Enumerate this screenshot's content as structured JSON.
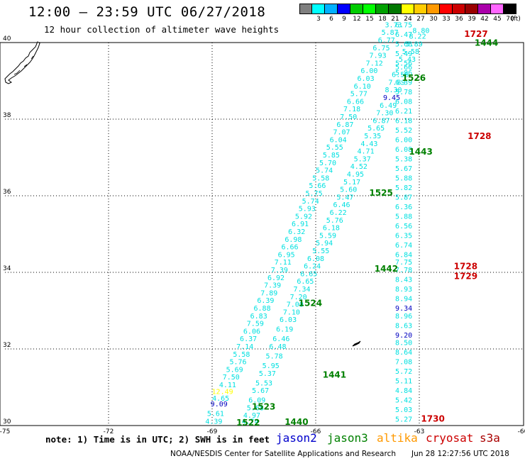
{
  "title": "12:00 – 23:59 UTC 06/27/2018",
  "subtitle": "12 hour collection of altimeter wave heights",
  "colorbar": {
    "unit_label": "(ft)",
    "levels": [
      {
        "label": "",
        "color": "#7f7f7f"
      },
      {
        "label": "3",
        "color": "#00ffff"
      },
      {
        "label": "6",
        "color": "#00b0ff"
      },
      {
        "label": "9",
        "color": "#0000ff"
      },
      {
        "label": "12",
        "color": "#00cc00"
      },
      {
        "label": "15",
        "color": "#00ff00"
      },
      {
        "label": "18",
        "color": "#00a000"
      },
      {
        "label": "21",
        "color": "#007700"
      },
      {
        "label": "24",
        "color": "#ffff00"
      },
      {
        "label": "27",
        "color": "#ffcc00"
      },
      {
        "label": "30",
        "color": "#ff9900"
      },
      {
        "label": "33",
        "color": "#ff0000"
      },
      {
        "label": "36",
        "color": "#cc0000"
      },
      {
        "label": "39",
        "color": "#990000"
      },
      {
        "label": "42",
        "color": "#aa00aa"
      },
      {
        "label": "45",
        "color": "#ff66ff"
      },
      {
        "label": "70",
        "color": "#000000"
      }
    ]
  },
  "axes": {
    "lon_ticks": [
      "-75",
      "-72",
      "-69",
      "-66",
      "-63",
      "-60"
    ],
    "lat_ticks": [
      "40",
      "38",
      "36",
      "34",
      "32",
      "30"
    ],
    "lon_range": [
      -75,
      -60
    ],
    "lat_range": [
      30,
      40
    ]
  },
  "colors": {
    "swh_low": "#00e0e0",
    "swh_mid": "#0000c0",
    "swh_high": "#ffff00",
    "jason2": "#0000cc",
    "jason3": "#008000",
    "altika": "#ff9900",
    "cryosat": "#cc0000",
    "s3a": "#aa0000"
  },
  "swh_tracks": [
    {
      "name": "track-a",
      "points": [
        {
          "lon": -68.95,
          "lat": 30.05,
          "v": "4.39"
        },
        {
          "lon": -68.9,
          "lat": 30.25,
          "v": "5.61"
        },
        {
          "lon": -68.8,
          "lat": 30.5,
          "v": "9.09",
          "c": "mid"
        },
        {
          "lon": -68.75,
          "lat": 30.65,
          "v": "4.65"
        },
        {
          "lon": -68.7,
          "lat": 30.82,
          "v": "12.49",
          "c": "high"
        },
        {
          "lon": -68.55,
          "lat": 31.0,
          "v": "4.11"
        },
        {
          "lon": -68.45,
          "lat": 31.2,
          "v": "7.50"
        },
        {
          "lon": -68.35,
          "lat": 31.4,
          "v": "5.69"
        },
        {
          "lon": -68.25,
          "lat": 31.6,
          "v": "5.76"
        },
        {
          "lon": -68.15,
          "lat": 31.8,
          "v": "5.58"
        },
        {
          "lon": -68.05,
          "lat": 32.0,
          "v": "7.14"
        },
        {
          "lon": -67.95,
          "lat": 32.2,
          "v": "6.37"
        },
        {
          "lon": -67.85,
          "lat": 32.4,
          "v": "6.06"
        },
        {
          "lon": -67.75,
          "lat": 32.6,
          "v": "7.59"
        },
        {
          "lon": -67.65,
          "lat": 32.8,
          "v": "6.83"
        },
        {
          "lon": -67.55,
          "lat": 33.0,
          "v": "6.88"
        },
        {
          "lon": -67.45,
          "lat": 33.2,
          "v": "6.39"
        },
        {
          "lon": -67.35,
          "lat": 33.4,
          "v": "7.89"
        },
        {
          "lon": -67.25,
          "lat": 33.6,
          "v": "7.39"
        },
        {
          "lon": -67.15,
          "lat": 33.8,
          "v": "6.92"
        },
        {
          "lon": -67.05,
          "lat": 34.0,
          "v": "7.39"
        },
        {
          "lon": -66.95,
          "lat": 34.2,
          "v": "7.11"
        },
        {
          "lon": -66.85,
          "lat": 34.4,
          "v": "6.95"
        },
        {
          "lon": -66.75,
          "lat": 34.6,
          "v": "6.66"
        },
        {
          "lon": -66.65,
          "lat": 34.8,
          "v": "6.98"
        },
        {
          "lon": -66.55,
          "lat": 35.0,
          "v": "6.32"
        },
        {
          "lon": -66.45,
          "lat": 35.2,
          "v": "6.91"
        },
        {
          "lon": -66.35,
          "lat": 35.4,
          "v": "5.92"
        },
        {
          "lon": -66.25,
          "lat": 35.6,
          "v": "5.93"
        },
        {
          "lon": -66.15,
          "lat": 35.8,
          "v": "5.74"
        },
        {
          "lon": -66.05,
          "lat": 36.0,
          "v": "5.75"
        },
        {
          "lon": -65.95,
          "lat": 36.2,
          "v": "5.66"
        },
        {
          "lon": -65.85,
          "lat": 36.4,
          "v": "5.58"
        },
        {
          "lon": -65.75,
          "lat": 36.6,
          "v": "5.74"
        },
        {
          "lon": -65.65,
          "lat": 36.8,
          "v": "5.70"
        },
        {
          "lon": -65.55,
          "lat": 37.0,
          "v": "5.85"
        },
        {
          "lon": -65.45,
          "lat": 37.2,
          "v": "5.55"
        },
        {
          "lon": -65.35,
          "lat": 37.4,
          "v": "6.04"
        },
        {
          "lon": -65.25,
          "lat": 37.6,
          "v": "7.07"
        },
        {
          "lon": -65.15,
          "lat": 37.8,
          "v": "6.87"
        },
        {
          "lon": -65.05,
          "lat": 38.0,
          "v": "7.50"
        },
        {
          "lon": -64.95,
          "lat": 38.2,
          "v": "7.18"
        },
        {
          "lon": -64.85,
          "lat": 38.4,
          "v": "6.66"
        },
        {
          "lon": -64.75,
          "lat": 38.6,
          "v": "5.77"
        },
        {
          "lon": -64.65,
          "lat": 38.8,
          "v": "6.10"
        },
        {
          "lon": -64.55,
          "lat": 39.0,
          "v": "6.03"
        },
        {
          "lon": -64.45,
          "lat": 39.2,
          "v": "6.00"
        },
        {
          "lon": -64.3,
          "lat": 39.4,
          "v": "7.12"
        },
        {
          "lon": -64.2,
          "lat": 39.6,
          "v": "7.93"
        },
        {
          "lon": -64.1,
          "lat": 39.8,
          "v": "6.75"
        },
        {
          "lon": -63.95,
          "lat": 40.0,
          "v": "6.77"
        },
        {
          "lon": -63.85,
          "lat": 40.2,
          "v": "5.87"
        },
        {
          "lon": -63.75,
          "lat": 40.4,
          "v": "3.73"
        }
      ]
    },
    {
      "name": "track-b",
      "points": [
        {
          "lon": -67.9,
          "lat": 30.05,
          "v": "4.74"
        },
        {
          "lon": -67.85,
          "lat": 30.2,
          "v": "4.97"
        },
        {
          "lon": -67.75,
          "lat": 30.4,
          "v": "5.68"
        },
        {
          "lon": -67.7,
          "lat": 30.6,
          "v": "6.09"
        },
        {
          "lon": -67.6,
          "lat": 30.85,
          "v": "5.67"
        },
        {
          "lon": -67.5,
          "lat": 31.05,
          "v": "5.53"
        },
        {
          "lon": -67.4,
          "lat": 31.3,
          "v": "5.37"
        },
        {
          "lon": -67.3,
          "lat": 31.5,
          "v": "5.95"
        },
        {
          "lon": -67.2,
          "lat": 31.75,
          "v": "5.78"
        },
        {
          "lon": -67.1,
          "lat": 32.0,
          "v": "6.48"
        },
        {
          "lon": -67.0,
          "lat": 32.2,
          "v": "6.46"
        },
        {
          "lon": -66.9,
          "lat": 32.45,
          "v": "6.19"
        },
        {
          "lon": -66.8,
          "lat": 32.7,
          "v": "6.03"
        },
        {
          "lon": -66.7,
          "lat": 32.9,
          "v": "7.10"
        },
        {
          "lon": -66.6,
          "lat": 33.1,
          "v": "7.00"
        },
        {
          "lon": -66.5,
          "lat": 33.3,
          "v": "7.20"
        },
        {
          "lon": -66.4,
          "lat": 33.5,
          "v": "7.34"
        },
        {
          "lon": -66.3,
          "lat": 33.7,
          "v": "6.65"
        },
        {
          "lon": -66.2,
          "lat": 33.9,
          "v": "6.65"
        },
        {
          "lon": -66.1,
          "lat": 34.1,
          "v": "6.24"
        },
        {
          "lon": -66.0,
          "lat": 34.3,
          "v": "6.08"
        },
        {
          "lon": -65.85,
          "lat": 34.5,
          "v": "5.55"
        },
        {
          "lon": -65.75,
          "lat": 34.7,
          "v": "5.94"
        },
        {
          "lon": -65.65,
          "lat": 34.9,
          "v": "5.59"
        },
        {
          "lon": -65.55,
          "lat": 35.1,
          "v": "6.18"
        },
        {
          "lon": -65.45,
          "lat": 35.3,
          "v": "5.76"
        },
        {
          "lon": -65.35,
          "lat": 35.5,
          "v": "6.22"
        },
        {
          "lon": -65.25,
          "lat": 35.7,
          "v": "6.46"
        },
        {
          "lon": -65.15,
          "lat": 35.9,
          "v": "5.47"
        },
        {
          "lon": -65.05,
          "lat": 36.1,
          "v": "5.60"
        },
        {
          "lon": -64.95,
          "lat": 36.3,
          "v": "5.17"
        },
        {
          "lon": -64.85,
          "lat": 36.5,
          "v": "4.95"
        },
        {
          "lon": -64.75,
          "lat": 36.7,
          "v": "4.52"
        },
        {
          "lon": -64.65,
          "lat": 36.9,
          "v": "5.37"
        },
        {
          "lon": -64.55,
          "lat": 37.1,
          "v": "4.71"
        },
        {
          "lon": -64.45,
          "lat": 37.3,
          "v": "4.43"
        },
        {
          "lon": -64.35,
          "lat": 37.5,
          "v": "5.35"
        },
        {
          "lon": -64.25,
          "lat": 37.7,
          "v": "5.65"
        },
        {
          "lon": -64.1,
          "lat": 37.9,
          "v": "6.87"
        },
        {
          "lon": -64.0,
          "lat": 38.1,
          "v": "7.30"
        },
        {
          "lon": -63.9,
          "lat": 38.3,
          "v": "6.49"
        },
        {
          "lon": -63.8,
          "lat": 38.5,
          "v": "9.45",
          "c": "mid"
        },
        {
          "lon": -63.75,
          "lat": 38.7,
          "v": "8.30"
        },
        {
          "lon": -63.65,
          "lat": 38.9,
          "v": "7.89"
        },
        {
          "lon": -63.55,
          "lat": 39.1,
          "v": "6.56"
        },
        {
          "lon": -63.45,
          "lat": 39.3,
          "v": "5.66"
        },
        {
          "lon": -63.35,
          "lat": 39.5,
          "v": "5.43"
        },
        {
          "lon": -63.25,
          "lat": 39.7,
          "v": "5.58"
        },
        {
          "lon": -63.15,
          "lat": 39.9,
          "v": "5.89"
        },
        {
          "lon": -63.05,
          "lat": 40.1,
          "v": "8.22"
        },
        {
          "lon": -62.95,
          "lat": 40.25,
          "v": "8.80"
        }
      ]
    },
    {
      "name": "track-c",
      "points": [
        {
          "lon": -63.45,
          "lat": 30.1,
          "v": "5.27"
        },
        {
          "lon": -63.45,
          "lat": 30.35,
          "v": "5.03"
        },
        {
          "lon": -63.45,
          "lat": 30.6,
          "v": "5.42"
        },
        {
          "lon": -63.45,
          "lat": 30.85,
          "v": "4.84"
        },
        {
          "lon": -63.45,
          "lat": 31.1,
          "v": "5.11"
        },
        {
          "lon": -63.45,
          "lat": 31.35,
          "v": "5.72"
        },
        {
          "lon": -63.45,
          "lat": 31.6,
          "v": "7.08"
        },
        {
          "lon": -63.45,
          "lat": 31.85,
          "v": "8.64"
        },
        {
          "lon": -63.45,
          "lat": 32.1,
          "v": "8.50"
        },
        {
          "lon": -63.45,
          "lat": 32.3,
          "v": "9.20",
          "c": "mid"
        },
        {
          "lon": -63.45,
          "lat": 32.55,
          "v": "8.63"
        },
        {
          "lon": -63.45,
          "lat": 32.8,
          "v": "8.96"
        },
        {
          "lon": -63.45,
          "lat": 33.0,
          "v": "9.34",
          "c": "mid"
        },
        {
          "lon": -63.45,
          "lat": 33.25,
          "v": "8.94"
        },
        {
          "lon": -63.45,
          "lat": 33.5,
          "v": "8.93"
        },
        {
          "lon": -63.45,
          "lat": 33.75,
          "v": "8.43"
        },
        {
          "lon": -63.45,
          "lat": 34.0,
          "v": "7.78"
        },
        {
          "lon": -63.45,
          "lat": 34.2,
          "v": "7.75"
        },
        {
          "lon": -63.45,
          "lat": 34.4,
          "v": "6.84"
        },
        {
          "lon": -63.45,
          "lat": 34.65,
          "v": "6.74"
        },
        {
          "lon": -63.45,
          "lat": 34.9,
          "v": "6.35"
        },
        {
          "lon": -63.45,
          "lat": 35.15,
          "v": "6.56"
        },
        {
          "lon": -63.45,
          "lat": 35.4,
          "v": "5.88"
        },
        {
          "lon": -63.45,
          "lat": 35.65,
          "v": "6.36"
        },
        {
          "lon": -63.45,
          "lat": 35.9,
          "v": "5.87"
        },
        {
          "lon": -63.45,
          "lat": 36.15,
          "v": "5.82"
        },
        {
          "lon": -63.45,
          "lat": 36.4,
          "v": "5.88"
        },
        {
          "lon": -63.45,
          "lat": 36.65,
          "v": "5.67"
        },
        {
          "lon": -63.45,
          "lat": 36.9,
          "v": "5.38"
        },
        {
          "lon": -63.45,
          "lat": 37.15,
          "v": "6.08"
        },
        {
          "lon": -63.45,
          "lat": 37.4,
          "v": "6.00"
        },
        {
          "lon": -63.45,
          "lat": 37.65,
          "v": "5.52"
        },
        {
          "lon": -63.45,
          "lat": 37.9,
          "v": "6.18"
        },
        {
          "lon": -63.45,
          "lat": 38.15,
          "v": "6.21"
        },
        {
          "lon": -63.45,
          "lat": 38.4,
          "v": "6.08"
        },
        {
          "lon": -63.45,
          "lat": 38.65,
          "v": "5.78"
        },
        {
          "lon": -63.45,
          "lat": 38.9,
          "v": "6.39"
        },
        {
          "lon": -63.45,
          "lat": 39.15,
          "v": "5.86"
        },
        {
          "lon": -63.45,
          "lat": 39.4,
          "v": "5.56"
        },
        {
          "lon": -63.45,
          "lat": 39.65,
          "v": "5.49"
        },
        {
          "lon": -63.45,
          "lat": 39.9,
          "v": "5.68"
        },
        {
          "lon": -63.45,
          "lat": 40.15,
          "v": "6.47"
        },
        {
          "lon": -63.45,
          "lat": 40.4,
          "v": "6.75"
        }
      ]
    }
  ],
  "time_labels": [
    {
      "text": "1522",
      "lon": -68.3,
      "lat": 30.0,
      "sat": "jason3"
    },
    {
      "text": "1523",
      "lon": -67.85,
      "lat": 30.42,
      "sat": "jason3"
    },
    {
      "text": "1440",
      "lon": -66.9,
      "lat": 30.02,
      "sat": "jason3"
    },
    {
      "text": "1441",
      "lon": -65.8,
      "lat": 31.25,
      "sat": "jason3"
    },
    {
      "text": "1524",
      "lon": -66.5,
      "lat": 33.12,
      "sat": "jason3"
    },
    {
      "text": "1442",
      "lon": -64.3,
      "lat": 34.02,
      "sat": "jason3"
    },
    {
      "text": "1525",
      "lon": -64.45,
      "lat": 36.0,
      "sat": "jason3"
    },
    {
      "text": "1443",
      "lon": -63.3,
      "lat": 37.07,
      "sat": "jason3"
    },
    {
      "text": "1526",
      "lon": -63.5,
      "lat": 39.0,
      "sat": "jason3"
    },
    {
      "text": "1444",
      "lon": -61.4,
      "lat": 39.92,
      "sat": "jason3"
    },
    {
      "text": "1727",
      "lon": -61.7,
      "lat": 40.15,
      "sat": "cryosat"
    },
    {
      "text": "1728",
      "lon": -61.6,
      "lat": 37.48,
      "sat": "cryosat"
    },
    {
      "text": "1728",
      "lon": -62.0,
      "lat": 34.08,
      "sat": "cryosat"
    },
    {
      "text": "1729",
      "lon": -62.0,
      "lat": 33.82,
      "sat": "cryosat"
    },
    {
      "text": "1730",
      "lon": -62.95,
      "lat": 30.1,
      "sat": "cryosat"
    }
  ],
  "note": "note: 1) Time is in UTC; 2) SWH is in feet",
  "satellites": [
    {
      "key": "jason2",
      "label": "jason2"
    },
    {
      "key": "jason3",
      "label": "jason3"
    },
    {
      "key": "altika",
      "label": "altika"
    },
    {
      "key": "cryosat",
      "label": "cryosat"
    },
    {
      "key": "s3a",
      "label": "s3a"
    }
  ],
  "credit": "NOAA/NESDIS Center for Satellite Applications and Research",
  "timestamp": "Jun 28 12:27:56 UTC 2018"
}
